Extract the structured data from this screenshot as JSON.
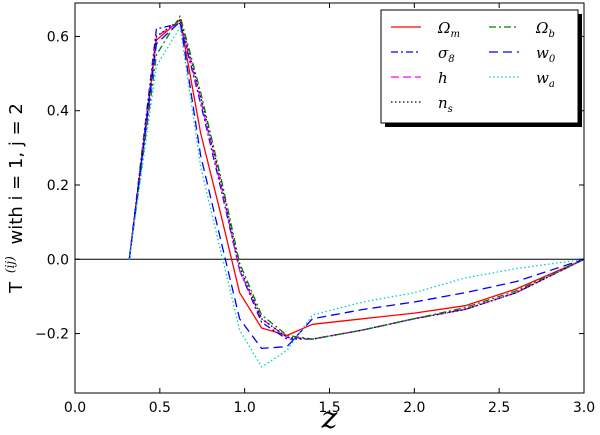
{
  "chart_data": {
    "type": "line",
    "xlabel": "z",
    "ylabel": "T",
    "ylabel_superscript": "(ij)",
    "ylabel_suffix": "with i = 1, j = 2",
    "xlim": [
      0.0,
      3.0
    ],
    "ylim": [
      -0.36,
      0.69
    ],
    "x_ticks": [
      0.0,
      0.5,
      1.0,
      1.5,
      2.0,
      2.5,
      3.0
    ],
    "x_tick_labels": [
      "0.0",
      "0.5",
      "1.0",
      "1.5",
      "2.0",
      "2.5",
      "3.0"
    ],
    "y_ticks": [
      -0.2,
      0.0,
      0.2,
      0.4,
      0.6
    ],
    "y_tick_labels": [
      "−0.2",
      "0.0",
      "0.2",
      "0.4",
      "0.6"
    ],
    "grid": false,
    "zero_line": true,
    "legend_position": "top-right",
    "series": [
      {
        "name": "Ω",
        "sub": "m",
        "color": "#ff0000",
        "dash": "",
        "x": [
          0.32,
          0.48,
          0.62,
          0.74,
          0.86,
          0.97,
          1.1,
          1.25,
          1.4,
          1.7,
          2.0,
          2.3,
          2.6,
          3.0
        ],
        "y": [
          0.0,
          0.59,
          0.645,
          0.34,
          0.12,
          -0.09,
          -0.185,
          -0.205,
          -0.175,
          -0.16,
          -0.145,
          -0.125,
          -0.08,
          0.0
        ]
      },
      {
        "name": "σ",
        "sub": "8",
        "color": "#0000ff",
        "dash": "7,3,2,3",
        "x": [
          0.32,
          0.48,
          0.62,
          0.74,
          0.86,
          0.97,
          1.1,
          1.25,
          1.4,
          1.7,
          2.0,
          2.3,
          2.6,
          3.0
        ],
        "y": [
          0.0,
          0.62,
          0.635,
          0.42,
          0.19,
          -0.03,
          -0.17,
          -0.215,
          -0.215,
          -0.19,
          -0.16,
          -0.135,
          -0.09,
          0.0
        ]
      },
      {
        "name": "h",
        "sub": "",
        "color": "#ff00ff",
        "dash": "8,4",
        "x": [
          0.32,
          0.48,
          0.62,
          0.74,
          0.86,
          0.97,
          1.1,
          1.25,
          1.4,
          1.7,
          2.0,
          2.3,
          2.6,
          3.0
        ],
        "y": [
          0.0,
          0.6,
          0.64,
          0.43,
          0.2,
          -0.03,
          -0.16,
          -0.21,
          -0.215,
          -0.19,
          -0.16,
          -0.135,
          -0.09,
          0.0
        ]
      },
      {
        "name": "n",
        "sub": "s",
        "color": "#000000",
        "dash": "1.5,2.5",
        "x": [
          0.32,
          0.48,
          0.62,
          0.74,
          0.86,
          0.97,
          1.1,
          1.25,
          1.4,
          1.7,
          2.0,
          2.3,
          2.6,
          3.0
        ],
        "y": [
          0.0,
          0.6,
          0.645,
          0.44,
          0.21,
          -0.02,
          -0.16,
          -0.21,
          -0.215,
          -0.19,
          -0.16,
          -0.135,
          -0.09,
          0.0
        ]
      },
      {
        "name": "Ω",
        "sub": "b",
        "color": "#008000",
        "dash": "7,3,2,3",
        "x": [
          0.32,
          0.48,
          0.62,
          0.74,
          0.86,
          0.97,
          1.1,
          1.25,
          1.4,
          1.7,
          2.0,
          2.3,
          2.6,
          3.0
        ],
        "y": [
          0.0,
          0.55,
          0.655,
          0.45,
          0.22,
          -0.01,
          -0.15,
          -0.205,
          -0.215,
          -0.19,
          -0.16,
          -0.13,
          -0.085,
          0.0
        ]
      },
      {
        "name": "w",
        "sub": "0",
        "color": "#0000ff",
        "dash": "9,5",
        "x": [
          0.32,
          0.48,
          0.62,
          0.74,
          0.86,
          0.97,
          1.1,
          1.25,
          1.4,
          1.7,
          2.0,
          2.3,
          2.6,
          3.0
        ],
        "y": [
          0.0,
          0.58,
          0.64,
          0.28,
          0.05,
          -0.16,
          -0.24,
          -0.235,
          -0.16,
          -0.135,
          -0.115,
          -0.09,
          -0.06,
          0.0
        ]
      },
      {
        "name": "w",
        "sub": "a",
        "color": "#00cccc",
        "dash": "1.5,2.5",
        "x": [
          0.32,
          0.48,
          0.62,
          0.74,
          0.86,
          0.97,
          1.1,
          1.25,
          1.4,
          1.7,
          2.0,
          2.3,
          2.6,
          3.0
        ],
        "y": [
          0.0,
          0.52,
          0.625,
          0.25,
          0.02,
          -0.19,
          -0.29,
          -0.245,
          -0.15,
          -0.115,
          -0.09,
          -0.05,
          -0.025,
          0.0
        ]
      }
    ]
  }
}
